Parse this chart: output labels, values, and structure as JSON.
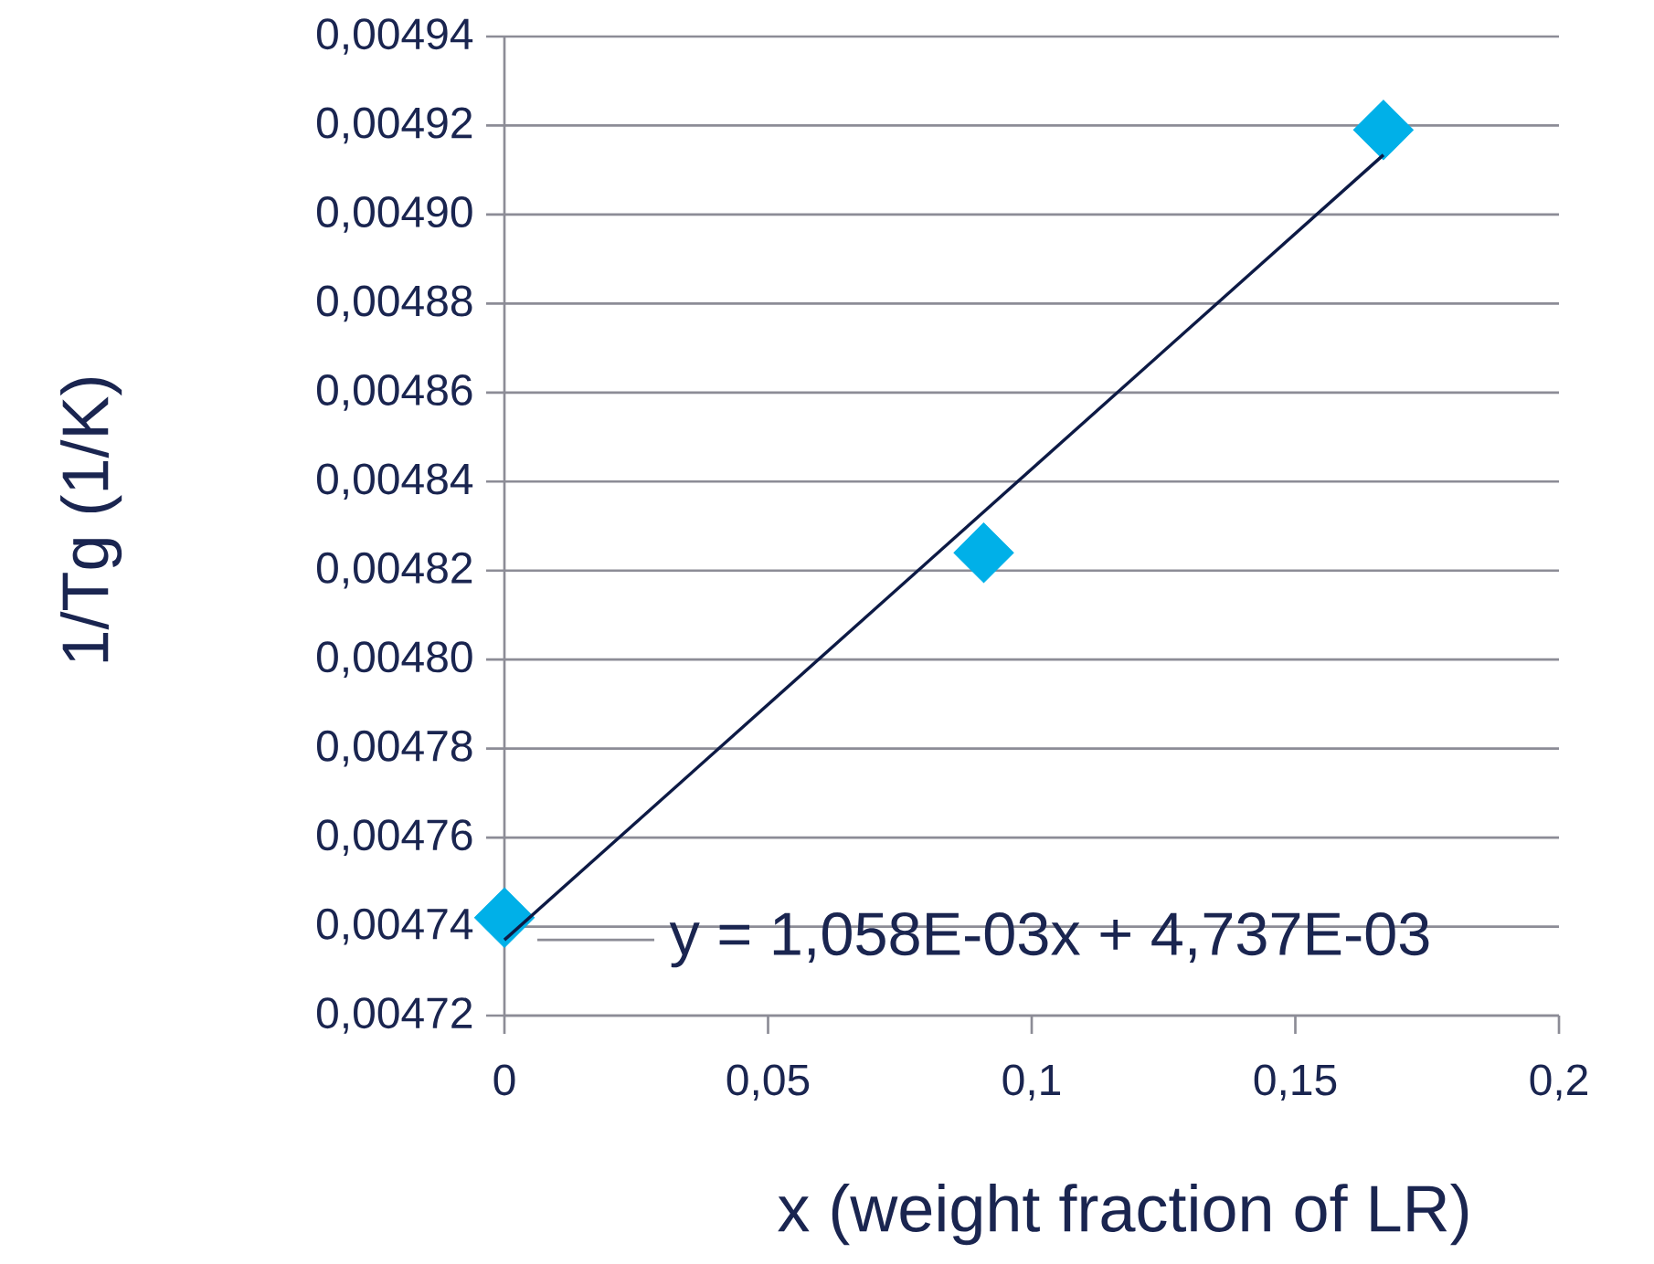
{
  "chart_data": {
    "type": "scatter",
    "xlabel": "x (weight fraction of LR)",
    "ylabel": "1/Tg (1/K)",
    "annotations": [
      {
        "text": "y = 1,058E-03x + 4,737E-03",
        "x": 0,
        "y": 0.004737
      }
    ],
    "series": [
      {
        "color": "#00b0e8",
        "marker": "diamond",
        "x": [
          0,
          0.0909,
          0.1667
        ],
        "values": [
          0.004742,
          0.004824,
          0.004919
        ]
      },
      {
        "type": "line",
        "color": "#0d1a45",
        "marker": "none",
        "line_style": "solid",
        "x": [
          0,
          0.1667
        ],
        "values": [
          0.004737,
          0.0049134
        ]
      }
    ],
    "xlim": [
      0,
      0.2
    ],
    "ylim": [
      0.00472,
      0.00494
    ],
    "xticks": [
      {
        "value": 0,
        "label": "0"
      },
      {
        "value": 0.05,
        "label": "0,05"
      },
      {
        "value": 0.1,
        "label": "0,1"
      },
      {
        "value": 0.15,
        "label": "0,15"
      },
      {
        "value": 0.2,
        "label": "0,2"
      }
    ],
    "yticks": [
      {
        "value": 0.00472,
        "label": "0,00472"
      },
      {
        "value": 0.00474,
        "label": "0,00474"
      },
      {
        "value": 0.00476,
        "label": "0,00476"
      },
      {
        "value": 0.00478,
        "label": "0,00478"
      },
      {
        "value": 0.0048,
        "label": "0,00480"
      },
      {
        "value": 0.00482,
        "label": "0,00482"
      },
      {
        "value": 0.00484,
        "label": "0,00484"
      },
      {
        "value": 0.00486,
        "label": "0,00486"
      },
      {
        "value": 0.00488,
        "label": "0,00488"
      },
      {
        "value": 0.0049,
        "label": "0,00490"
      },
      {
        "value": 0.00492,
        "label": "0,00492"
      },
      {
        "value": 0.00494,
        "label": "0,00494"
      }
    ],
    "grid": "y"
  }
}
